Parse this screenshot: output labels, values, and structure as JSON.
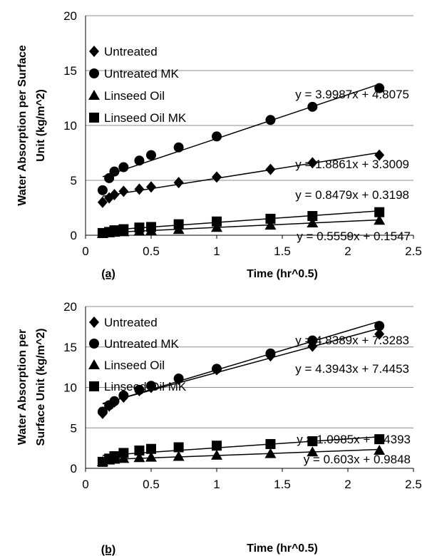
{
  "chart_data": [
    {
      "type": "scatter",
      "panel_label": "(a)",
      "xlabel": "Time (hr^0.5)",
      "ylabel_lines": [
        "Water Absorption per Surface",
        "Unit (kg/m^2)"
      ],
      "xlim": [
        0,
        2.5
      ],
      "ylim": [
        0,
        20
      ],
      "xticks": [
        "0",
        "0.5",
        "1",
        "1.5",
        "2",
        "2.5"
      ],
      "yticks": [
        "0",
        "5",
        "10",
        "15",
        "20"
      ],
      "grid": "horizontal",
      "legend_position": "top-left",
      "x": [
        0.13,
        0.18,
        0.22,
        0.29,
        0.41,
        0.5,
        0.71,
        1.0,
        1.41,
        1.73,
        2.24
      ],
      "series": [
        {
          "name": "Untreated",
          "marker": "diamond",
          "values": [
            3.0,
            3.4,
            3.7,
            4.0,
            4.2,
            4.4,
            4.8,
            5.3,
            6.0,
            6.6,
            7.3
          ],
          "trendline": {
            "equation": "y = 1.8861x + 3.3009",
            "slope": 1.8861,
            "intercept": 3.3009
          }
        },
        {
          "name": "Untreated MK",
          "marker": "circle",
          "values": [
            4.1,
            5.2,
            5.8,
            6.2,
            6.8,
            7.3,
            8.0,
            9.0,
            10.5,
            11.7,
            13.4
          ],
          "trendline": {
            "equation": "y = 3.9987x + 4.8075",
            "slope": 3.9987,
            "intercept": 4.8075
          }
        },
        {
          "name": "Linseed Oil",
          "marker": "triangle",
          "values": [
            0.15,
            0.2,
            0.25,
            0.3,
            0.35,
            0.4,
            0.5,
            0.7,
            0.9,
            1.1,
            1.35
          ],
          "trendline": {
            "equation": "y = 0.5559x + 0.1547",
            "slope": 0.5559,
            "intercept": 0.1547
          }
        },
        {
          "name": "Linseed Oil MK",
          "marker": "square",
          "values": [
            0.2,
            0.3,
            0.45,
            0.55,
            0.7,
            0.75,
            1.0,
            1.25,
            1.5,
            1.75,
            2.1
          ],
          "trendline": {
            "equation": "y = 0.8479x + 0.3198",
            "slope": 0.8479,
            "intercept": 0.3198
          }
        }
      ]
    },
    {
      "type": "scatter",
      "panel_label": "(b)",
      "xlabel": "Time (hr^0.5)",
      "ylabel_lines": [
        "Water Absorption per",
        "Surface Unit (kg/m^2)"
      ],
      "xlim": [
        0,
        2.5
      ],
      "ylim": [
        0,
        20
      ],
      "xticks": [
        "0",
        "0.5",
        "1",
        "1.5",
        "2",
        "2.5"
      ],
      "yticks": [
        "0",
        "5",
        "10",
        "15",
        "20"
      ],
      "grid": "horizontal",
      "legend_position": "top-left",
      "x": [
        0.13,
        0.18,
        0.22,
        0.29,
        0.41,
        0.5,
        0.71,
        1.0,
        1.41,
        1.73,
        2.24
      ],
      "series": [
        {
          "name": "Untreated",
          "marker": "diamond",
          "values": [
            6.8,
            7.7,
            8.2,
            8.8,
            9.6,
            10.0,
            11.0,
            12.2,
            13.9,
            15.1,
            16.6
          ],
          "trendline": {
            "equation": "y = 4.3943x + 7.4453",
            "slope": 4.3943,
            "intercept": 7.4453
          }
        },
        {
          "name": "Untreated MK",
          "marker": "circle",
          "values": [
            7.0,
            7.8,
            8.3,
            9.0,
            9.7,
            10.2,
            11.1,
            12.3,
            14.2,
            15.8,
            17.6
          ],
          "trendline": {
            "equation": "y = 4.8389x + 7.3283",
            "slope": 4.8389,
            "intercept": 7.3283
          }
        },
        {
          "name": "Linseed Oil",
          "marker": "triangle",
          "values": [
            0.8,
            1.0,
            1.1,
            1.2,
            1.3,
            1.35,
            1.45,
            1.6,
            1.8,
            2.0,
            2.2
          ],
          "trendline": {
            "equation": "y = 0.603x + 0.9848",
            "slope": 0.603,
            "intercept": 0.9848
          }
        },
        {
          "name": "Linseed Oil MK",
          "marker": "square",
          "values": [
            0.8,
            1.2,
            1.5,
            1.9,
            2.2,
            2.4,
            2.6,
            2.8,
            3.0,
            3.35,
            3.6
          ],
          "trendline": {
            "equation": "y = 1.0985x + 1.4393",
            "slope": 1.0985,
            "intercept": 1.4393
          }
        }
      ]
    }
  ]
}
